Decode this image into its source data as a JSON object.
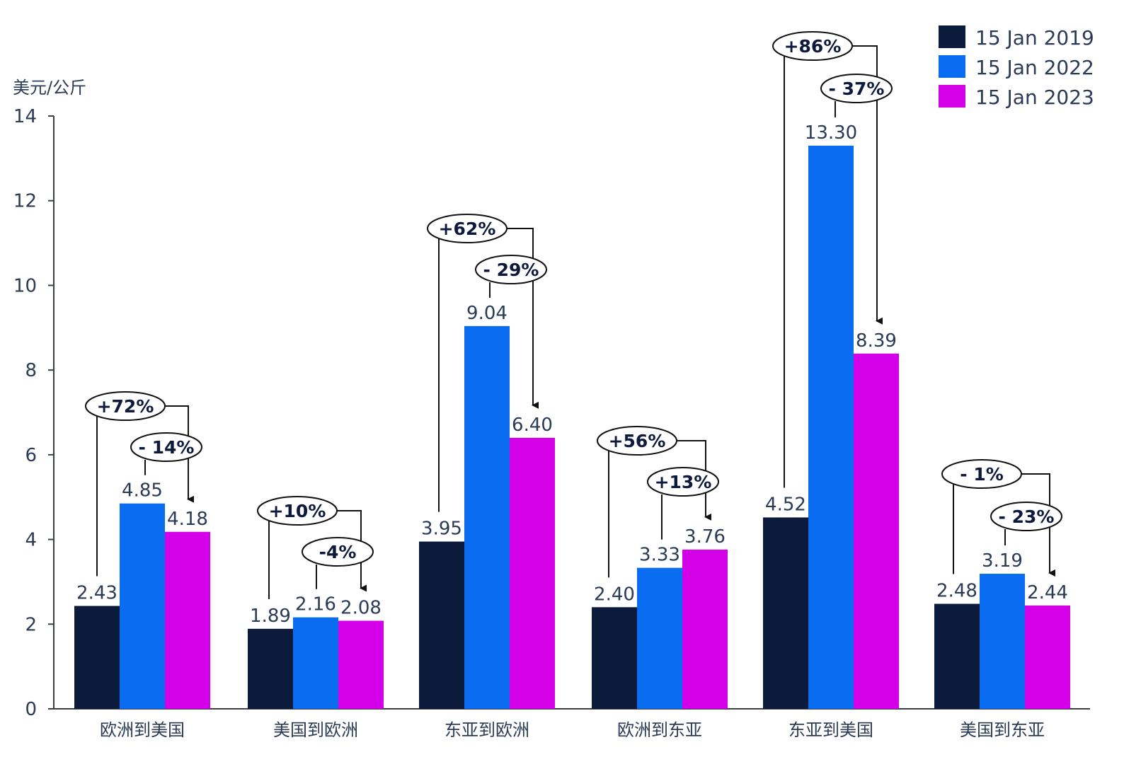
{
  "chart_data": {
    "type": "bar",
    "ylabel": "美元/公斤",
    "ylim": [
      0,
      14
    ],
    "yticks": [
      "0",
      "2",
      "4",
      "6",
      "8",
      "10",
      "12",
      "14"
    ],
    "categories": [
      "欧洲到美国",
      "美国到欧洲",
      "东亚到欧洲",
      "欧洲到东亚",
      "东亚到美国",
      "美国到东亚"
    ],
    "series": [
      {
        "name": "15 Jan 2019",
        "color": "#0c1a3c",
        "values": [
          2.43,
          1.89,
          3.95,
          2.4,
          4.52,
          2.48
        ],
        "labels": [
          "2.43",
          "1.89",
          "3.95",
          "2.40",
          "4.52",
          "2.48"
        ]
      },
      {
        "name": "15 Jan 2022",
        "color": "#0a6cf0",
        "values": [
          4.85,
          2.16,
          9.04,
          3.33,
          13.3,
          3.19
        ],
        "labels": [
          "4.85",
          "2.16",
          "9.04",
          "3.33",
          "13.30",
          "3.19"
        ]
      },
      {
        "name": "15 Jan 2023",
        "color": "#d400e8",
        "values": [
          4.18,
          2.08,
          6.4,
          3.76,
          8.39,
          2.44
        ],
        "labels": [
          "4.18",
          "2.08",
          "6.40",
          "3.76",
          "8.39",
          "2.44"
        ]
      }
    ],
    "annotations": [
      {
        "change_2019_2022": "+72%",
        "change_2022_2023": "- 14%"
      },
      {
        "change_2019_2022": "+10%",
        "change_2022_2023": "-4%"
      },
      {
        "change_2019_2022": "+62%",
        "change_2022_2023": "- 29%"
      },
      {
        "change_2019_2022": "+56%",
        "change_2022_2023": "+13%"
      },
      {
        "change_2019_2022": "+86%",
        "change_2022_2023": "- 37%"
      },
      {
        "change_2019_2022": "- 1%",
        "change_2022_2023": "- 23%"
      }
    ],
    "grid": false,
    "legend_position": "top-right"
  }
}
